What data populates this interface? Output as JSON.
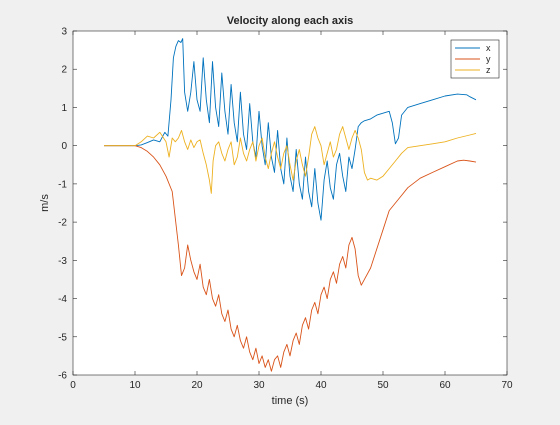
{
  "chart_data": {
    "type": "line",
    "title": "Velocity along each axis",
    "xlabel": "time (s)",
    "ylabel": "m/s",
    "xlim": [
      0,
      70
    ],
    "ylim": [
      -6,
      3
    ],
    "xticks": [
      0,
      10,
      20,
      30,
      40,
      50,
      60,
      70
    ],
    "yticks": [
      -6,
      -5,
      -4,
      -3,
      -2,
      -1,
      0,
      1,
      2,
      3
    ],
    "grid": false,
    "legend_position": "top-right",
    "series": [
      {
        "name": "x",
        "color": "#0072BD",
        "points": [
          [
            5,
            0
          ],
          [
            10,
            0
          ],
          [
            11,
            0.02
          ],
          [
            12,
            0.08
          ],
          [
            13,
            0.15
          ],
          [
            14,
            0.1
          ],
          [
            14.8,
            0.35
          ],
          [
            15.3,
            0.25
          ],
          [
            15.8,
            1.2
          ],
          [
            16.2,
            2.3
          ],
          [
            16.6,
            2.6
          ],
          [
            17,
            2.75
          ],
          [
            17.4,
            2.7
          ],
          [
            17.7,
            2.8
          ],
          [
            18,
            1.4
          ],
          [
            18.5,
            0.9
          ],
          [
            19,
            1.4
          ],
          [
            19.5,
            2.2
          ],
          [
            20,
            1.2
          ],
          [
            20.5,
            0.9
          ],
          [
            21,
            2.3
          ],
          [
            21.5,
            1.2
          ],
          [
            22,
            0.6
          ],
          [
            22.5,
            2.2
          ],
          [
            23,
            1.0
          ],
          [
            23.5,
            0.5
          ],
          [
            24,
            1.9
          ],
          [
            24.5,
            0.9
          ],
          [
            25,
            0.3
          ],
          [
            25.5,
            1.6
          ],
          [
            26,
            0.6
          ],
          [
            26.5,
            0.1
          ],
          [
            27,
            1.4
          ],
          [
            27.5,
            0.3
          ],
          [
            28,
            -0.1
          ],
          [
            28.5,
            1.1
          ],
          [
            29,
            0.1
          ],
          [
            29.5,
            -0.3
          ],
          [
            30,
            0.9
          ],
          [
            30.5,
            0.0
          ],
          [
            31,
            -0.5
          ],
          [
            31.5,
            0.6
          ],
          [
            32,
            -0.3
          ],
          [
            32.5,
            -0.7
          ],
          [
            33,
            0.4
          ],
          [
            33.5,
            -0.6
          ],
          [
            34,
            -1.0
          ],
          [
            34.5,
            0.2
          ],
          [
            35,
            -0.8
          ],
          [
            35.5,
            -1.2
          ],
          [
            36,
            -0.1
          ],
          [
            36.5,
            -1.0
          ],
          [
            37,
            -1.4
          ],
          [
            37.5,
            -0.3
          ],
          [
            38,
            -1.2
          ],
          [
            38.5,
            -1.6
          ],
          [
            39,
            -0.6
          ],
          [
            39.5,
            -1.5
          ],
          [
            40,
            -1.95
          ],
          [
            40.5,
            -0.9
          ],
          [
            41,
            -0.4
          ],
          [
            41.5,
            -1.1
          ],
          [
            42,
            -1.4
          ],
          [
            42.5,
            -0.5
          ],
          [
            43,
            -0.2
          ],
          [
            43.5,
            -0.8
          ],
          [
            44,
            -1.2
          ],
          [
            44.5,
            -0.3
          ],
          [
            45,
            -0.6
          ],
          [
            45.5,
            -0.1
          ],
          [
            46,
            0.5
          ],
          [
            46.5,
            0.6
          ],
          [
            47,
            0.65
          ],
          [
            48,
            0.7
          ],
          [
            49,
            0.8
          ],
          [
            50,
            0.85
          ],
          [
            51,
            0.9
          ],
          [
            51.5,
            0.6
          ],
          [
            52,
            0.05
          ],
          [
            52.5,
            0.2
          ],
          [
            53,
            0.8
          ],
          [
            54,
            1.0
          ],
          [
            56,
            1.1
          ],
          [
            58,
            1.2
          ],
          [
            60,
            1.3
          ],
          [
            62,
            1.35
          ],
          [
            63.5,
            1.33
          ],
          [
            64,
            1.28
          ],
          [
            65,
            1.2
          ]
        ]
      },
      {
        "name": "y",
        "color": "#D95319",
        "points": [
          [
            5,
            0
          ],
          [
            10,
            0
          ],
          [
            11,
            -0.05
          ],
          [
            12,
            -0.15
          ],
          [
            13,
            -0.3
          ],
          [
            14,
            -0.5
          ],
          [
            15,
            -0.8
          ],
          [
            16,
            -1.2
          ],
          [
            17,
            -2.6
          ],
          [
            17.5,
            -3.4
          ],
          [
            18,
            -3.2
          ],
          [
            18.5,
            -2.6
          ],
          [
            19,
            -3.0
          ],
          [
            19.5,
            -3.3
          ],
          [
            20,
            -3.5
          ],
          [
            20.5,
            -3.1
          ],
          [
            21,
            -3.7
          ],
          [
            21.5,
            -3.9
          ],
          [
            22,
            -3.5
          ],
          [
            22.5,
            -4.0
          ],
          [
            23,
            -4.2
          ],
          [
            23.5,
            -3.9
          ],
          [
            24,
            -4.4
          ],
          [
            24.5,
            -4.6
          ],
          [
            25,
            -4.3
          ],
          [
            25.5,
            -4.8
          ],
          [
            26,
            -5.0
          ],
          [
            26.5,
            -4.7
          ],
          [
            27,
            -5.1
          ],
          [
            27.5,
            -5.3
          ],
          [
            28,
            -5.0
          ],
          [
            28.5,
            -5.4
          ],
          [
            29,
            -5.6
          ],
          [
            29.5,
            -5.3
          ],
          [
            30,
            -5.7
          ],
          [
            30.5,
            -5.5
          ],
          [
            31,
            -5.8
          ],
          [
            31.5,
            -5.6
          ],
          [
            32,
            -5.9
          ],
          [
            32.5,
            -5.6
          ],
          [
            33,
            -5.5
          ],
          [
            33.5,
            -5.8
          ],
          [
            34,
            -5.4
          ],
          [
            34.5,
            -5.2
          ],
          [
            35,
            -5.5
          ],
          [
            35.5,
            -5.1
          ],
          [
            36,
            -4.9
          ],
          [
            36.5,
            -5.2
          ],
          [
            37,
            -4.7
          ],
          [
            37.5,
            -4.5
          ],
          [
            38,
            -4.8
          ],
          [
            38.5,
            -4.3
          ],
          [
            39,
            -4.1
          ],
          [
            39.5,
            -4.4
          ],
          [
            40,
            -3.9
          ],
          [
            40.5,
            -3.7
          ],
          [
            41,
            -4.0
          ],
          [
            41.5,
            -3.5
          ],
          [
            42,
            -3.3
          ],
          [
            42.5,
            -3.6
          ],
          [
            43,
            -3.1
          ],
          [
            43.5,
            -2.9
          ],
          [
            44,
            -3.2
          ],
          [
            44.5,
            -2.6
          ],
          [
            45,
            -2.4
          ],
          [
            45.5,
            -2.7
          ],
          [
            46,
            -3.4
          ],
          [
            46.5,
            -3.65
          ],
          [
            47,
            -3.5
          ],
          [
            48,
            -3.2
          ],
          [
            49,
            -2.7
          ],
          [
            50,
            -2.2
          ],
          [
            51,
            -1.7
          ],
          [
            52,
            -1.5
          ],
          [
            53,
            -1.3
          ],
          [
            54,
            -1.1
          ],
          [
            56,
            -0.85
          ],
          [
            58,
            -0.7
          ],
          [
            60,
            -0.55
          ],
          [
            62,
            -0.4
          ],
          [
            63,
            -0.38
          ],
          [
            64,
            -0.4
          ],
          [
            65,
            -0.43
          ]
        ]
      },
      {
        "name": "z",
        "color": "#EDB120",
        "points": [
          [
            5,
            0
          ],
          [
            10,
            0
          ],
          [
            11,
            0.1
          ],
          [
            12,
            0.25
          ],
          [
            13,
            0.2
          ],
          [
            14,
            0.35
          ],
          [
            15,
            0.1
          ],
          [
            15.5,
            -0.3
          ],
          [
            16,
            0.2
          ],
          [
            16.5,
            0.1
          ],
          [
            17,
            0.2
          ],
          [
            17.5,
            0.4
          ],
          [
            18,
            0.1
          ],
          [
            18.5,
            -0.1
          ],
          [
            19,
            0.15
          ],
          [
            19.5,
            -0.05
          ],
          [
            20,
            0.1
          ],
          [
            20.5,
            0.15
          ],
          [
            21,
            -0.2
          ],
          [
            21.5,
            -0.5
          ],
          [
            22,
            -0.9
          ],
          [
            22.3,
            -1.25
          ],
          [
            22.6,
            -0.4
          ],
          [
            23,
            0.0
          ],
          [
            23.5,
            0.1
          ],
          [
            24,
            -0.2
          ],
          [
            24.5,
            -0.4
          ],
          [
            25,
            -0.1
          ],
          [
            25.5,
            0.1
          ],
          [
            26,
            -0.5
          ],
          [
            26.5,
            -0.3
          ],
          [
            27,
            0.2
          ],
          [
            27.5,
            -0.2
          ],
          [
            28,
            -0.4
          ],
          [
            28.5,
            -0.1
          ],
          [
            29,
            0.1
          ],
          [
            29.5,
            -0.4
          ],
          [
            30,
            0.0
          ],
          [
            30.5,
            0.2
          ],
          [
            31,
            -0.3
          ],
          [
            31.5,
            -0.6
          ],
          [
            32,
            -0.2
          ],
          [
            32.5,
            0.1
          ],
          [
            33,
            -0.3
          ],
          [
            33.5,
            -0.6
          ],
          [
            34,
            -0.2
          ],
          [
            34.5,
            0.0
          ],
          [
            35,
            -0.5
          ],
          [
            35.5,
            -0.9
          ],
          [
            36,
            -0.4
          ],
          [
            36.5,
            -0.1
          ],
          [
            37,
            -0.5
          ],
          [
            37.5,
            -0.8
          ],
          [
            38,
            -0.3
          ],
          [
            38.5,
            0.3
          ],
          [
            39,
            0.5
          ],
          [
            39.5,
            0.2
          ],
          [
            40,
            0.0
          ],
          [
            40.5,
            -0.5
          ],
          [
            41,
            -0.2
          ],
          [
            41.5,
            0.1
          ],
          [
            42,
            -0.3
          ],
          [
            42.5,
            -0.1
          ],
          [
            43,
            0.3
          ],
          [
            43.5,
            0.5
          ],
          [
            44,
            0.2
          ],
          [
            44.5,
            -0.1
          ],
          [
            45,
            0.2
          ],
          [
            45.5,
            0.4
          ],
          [
            46,
            0.2
          ],
          [
            46.5,
            -0.1
          ],
          [
            47,
            -0.7
          ],
          [
            47.5,
            -0.9
          ],
          [
            48,
            -0.85
          ],
          [
            49,
            -0.9
          ],
          [
            50,
            -0.8
          ],
          [
            51,
            -0.6
          ],
          [
            52,
            -0.4
          ],
          [
            53,
            -0.2
          ],
          [
            54,
            -0.05
          ],
          [
            56,
            0.0
          ],
          [
            58,
            0.05
          ],
          [
            60,
            0.1
          ],
          [
            62,
            0.2
          ],
          [
            64,
            0.28
          ],
          [
            65,
            0.32
          ]
        ]
      }
    ]
  }
}
